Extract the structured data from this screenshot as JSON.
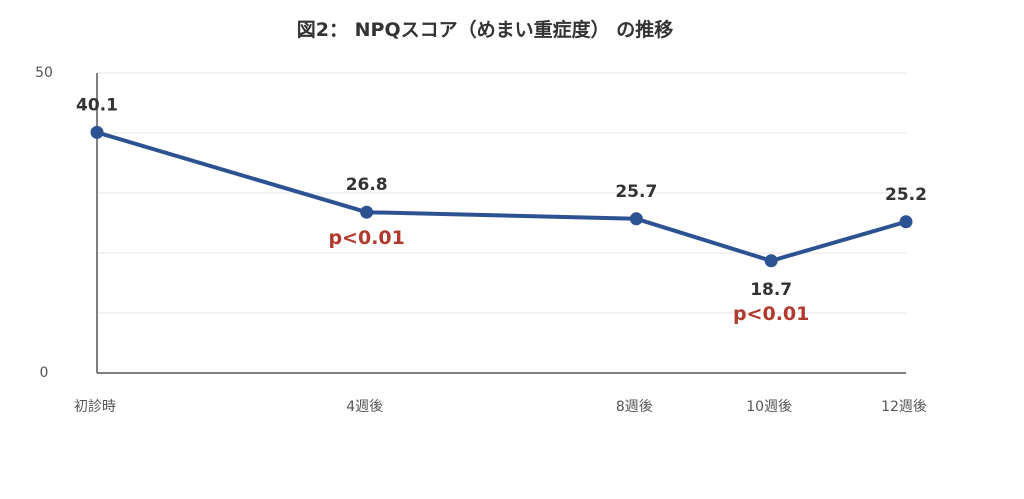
{
  "chart_data": {
    "type": "line",
    "title": "図2： NPQスコア（めまい重症度） の推移",
    "xlabel": "",
    "ylabel": "",
    "ylim": [
      0,
      50
    ],
    "yticks_labeled": [
      "0",
      "50"
    ],
    "grid": true,
    "categories": [
      "初診時",
      "4週後",
      "8週後",
      "10週後",
      "12週後"
    ],
    "x_weeks": [
      0,
      4,
      8,
      10,
      12
    ],
    "series": [
      {
        "values": [
          40.1,
          26.8,
          25.7,
          18.7,
          25.2
        ],
        "data_labels": [
          "40.1",
          "26.8",
          "25.7",
          "18.7",
          "25.2"
        ],
        "color": "#2d5291"
      }
    ],
    "annotations": [
      {
        "category": "4週後",
        "text": "p<0.01",
        "color": "#b03a2e"
      },
      {
        "category": "10週後",
        "text": "p<0.01",
        "color": "#b03a2e"
      }
    ]
  }
}
